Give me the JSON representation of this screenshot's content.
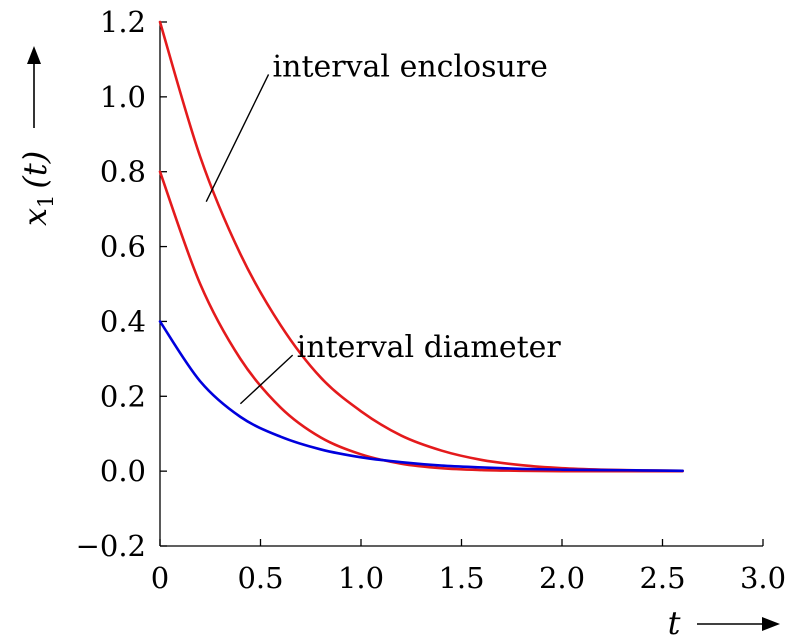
{
  "chart_data": {
    "type": "line",
    "title": "",
    "xlabel": "t",
    "ylabel_main": "x",
    "ylabel_sub": "1",
    "ylabel_arg": "(t)",
    "xlim": [
      0,
      3.0
    ],
    "ylim": [
      -0.2,
      1.2
    ],
    "x_ticks": [
      0,
      0.5,
      1.0,
      1.5,
      2.0,
      2.5,
      3.0
    ],
    "x_tick_labels": [
      "0",
      "0.5",
      "1.0",
      "1.5",
      "2.0",
      "2.5",
      "3.0"
    ],
    "y_ticks": [
      -0.2,
      0.0,
      0.2,
      0.4,
      0.6,
      0.8,
      1.0,
      1.2
    ],
    "y_tick_labels": [
      "−0.2",
      "0.0",
      "0.2",
      "0.4",
      "0.6",
      "0.8",
      "1.0",
      "1.2"
    ],
    "grid": false,
    "series": [
      {
        "color": "#e41a1c",
        "x": [
          0,
          0.2,
          0.4,
          0.6,
          0.8,
          1.0,
          1.2,
          1.4,
          1.6,
          1.8,
          2.0,
          2.2,
          2.4,
          2.6
        ],
        "y": [
          1.2,
          0.84,
          0.58,
          0.39,
          0.25,
          0.16,
          0.095,
          0.055,
          0.03,
          0.016,
          0.008,
          0.004,
          0.002,
          0.001
        ]
      },
      {
        "color": "#e41a1c",
        "x": [
          0,
          0.2,
          0.4,
          0.6,
          0.8,
          1.0,
          1.2,
          1.4,
          1.6,
          1.8,
          2.0,
          2.2,
          2.4,
          2.6
        ],
        "y": [
          0.8,
          0.5,
          0.3,
          0.17,
          0.09,
          0.045,
          0.02,
          0.008,
          0.003,
          0.001,
          0.0,
          0.0,
          0.0,
          0.0
        ]
      },
      {
        "color": "#0000dd",
        "x": [
          0,
          0.2,
          0.4,
          0.6,
          0.8,
          1.0,
          1.2,
          1.4,
          1.6,
          1.8,
          2.0,
          2.2,
          2.4,
          2.6
        ],
        "y": [
          0.4,
          0.24,
          0.145,
          0.092,
          0.058,
          0.037,
          0.024,
          0.015,
          0.01,
          0.006,
          0.004,
          0.003,
          0.002,
          0.001
        ]
      }
    ],
    "annotations": [
      {
        "text": "interval enclosure",
        "line_from": [
          0.23,
          0.72
        ],
        "line_to": [
          0.54,
          1.06
        ]
      },
      {
        "text": "interval diameter",
        "line_from": [
          0.4,
          0.18
        ],
        "line_to": [
          0.66,
          0.31
        ]
      }
    ]
  }
}
